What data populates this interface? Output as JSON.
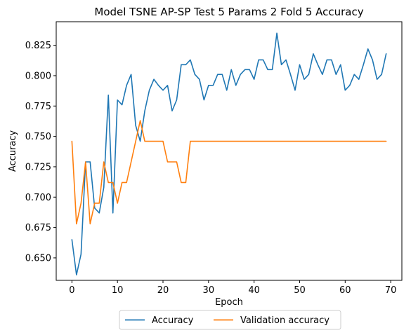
{
  "chart_data": {
    "type": "line",
    "title": "Model TSNE AP-SP Test 5 Params 2 Fold 5 Accuracy",
    "xlabel": "Epoch",
    "ylabel": "Accuracy",
    "xlim": [
      -3.45,
      72.45
    ],
    "ylim": [
      0.6315,
      0.8444
    ],
    "xticks": [
      0,
      10,
      20,
      30,
      40,
      50,
      60,
      70
    ],
    "yticks": [
      0.65,
      0.675,
      0.7,
      0.725,
      0.75,
      0.775,
      0.8,
      0.825
    ],
    "ytick_labels": [
      "0.650",
      "0.675",
      "0.700",
      "0.725",
      "0.750",
      "0.775",
      "0.800",
      "0.825"
    ],
    "legend": "lower-center-outside",
    "series": [
      {
        "name": "Accuracy",
        "color": "#1f77b4",
        "x": [
          0,
          1,
          2,
          3,
          4,
          5,
          6,
          7,
          8,
          9,
          10,
          11,
          12,
          13,
          14,
          15,
          16,
          17,
          18,
          19,
          20,
          21,
          22,
          23,
          24,
          25,
          26,
          27,
          28,
          29,
          30,
          31,
          32,
          33,
          34,
          35,
          36,
          37,
          38,
          39,
          40,
          41,
          42,
          43,
          44,
          45,
          46,
          47,
          48,
          49,
          50,
          51,
          52,
          53,
          54,
          55,
          56,
          57,
          58,
          59,
          60,
          61,
          62,
          63,
          64,
          65,
          66,
          67,
          68,
          69
        ],
        "values": [
          0.665,
          0.636,
          0.653,
          0.729,
          0.729,
          0.691,
          0.687,
          0.708,
          0.784,
          0.687,
          0.78,
          0.776,
          0.792,
          0.801,
          0.759,
          0.746,
          0.771,
          0.788,
          0.797,
          0.792,
          0.788,
          0.792,
          0.771,
          0.78,
          0.809,
          0.809,
          0.813,
          0.801,
          0.797,
          0.78,
          0.792,
          0.792,
          0.801,
          0.801,
          0.788,
          0.805,
          0.792,
          0.801,
          0.805,
          0.805,
          0.797,
          0.813,
          0.813,
          0.805,
          0.805,
          0.835,
          0.809,
          0.813,
          0.801,
          0.788,
          0.809,
          0.797,
          0.801,
          0.818,
          0.809,
          0.801,
          0.813,
          0.813,
          0.801,
          0.809,
          0.788,
          0.792,
          0.801,
          0.797,
          0.809,
          0.822,
          0.813,
          0.797,
          0.801,
          0.818
        ]
      },
      {
        "name": "Validation accuracy",
        "color": "#ff7f0e",
        "x": [
          0,
          1,
          2,
          3,
          4,
          5,
          6,
          7,
          8,
          9,
          10,
          11,
          12,
          13,
          14,
          15,
          16,
          17,
          18,
          19,
          20,
          21,
          22,
          23,
          24,
          25,
          26,
          27,
          28,
          29,
          30,
          31,
          32,
          33,
          34,
          35,
          36,
          37,
          38,
          39,
          40,
          41,
          42,
          43,
          44,
          45,
          46,
          47,
          48,
          49,
          50,
          51,
          52,
          53,
          54,
          55,
          56,
          57,
          58,
          59,
          60,
          61,
          62,
          63,
          64,
          65,
          66,
          67,
          68,
          69
        ],
        "values": [
          0.746,
          0.678,
          0.695,
          0.729,
          0.678,
          0.695,
          0.695,
          0.729,
          0.712,
          0.712,
          0.695,
          0.712,
          0.712,
          0.729,
          0.746,
          0.763,
          0.746,
          0.746,
          0.746,
          0.746,
          0.746,
          0.729,
          0.729,
          0.729,
          0.712,
          0.712,
          0.746,
          0.746,
          0.746,
          0.746,
          0.746,
          0.746,
          0.746,
          0.746,
          0.746,
          0.746,
          0.746,
          0.746,
          0.746,
          0.746,
          0.746,
          0.746,
          0.746,
          0.746,
          0.746,
          0.746,
          0.746,
          0.746,
          0.746,
          0.746,
          0.746,
          0.746,
          0.746,
          0.746,
          0.746,
          0.746,
          0.746,
          0.746,
          0.746,
          0.746,
          0.746,
          0.746,
          0.746,
          0.746,
          0.746,
          0.746,
          0.746,
          0.746,
          0.746,
          0.746
        ]
      }
    ]
  }
}
